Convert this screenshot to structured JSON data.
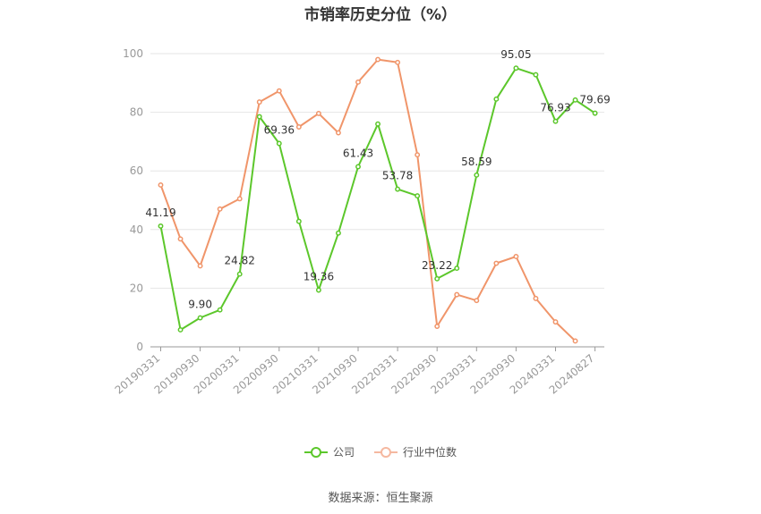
{
  "chart_data": {
    "type": "line",
    "title": "市销率历史分位（%）",
    "source": "数据来源：恒生聚源",
    "ylim": [
      0,
      100
    ],
    "y_ticks": [
      0,
      20,
      40,
      60,
      80,
      100
    ],
    "grid": true,
    "legend_position": "bottom-center",
    "x_tick_labels": [
      "20190331",
      "20190930",
      "20200331",
      "20200930",
      "20210331",
      "20210930",
      "20220331",
      "20220930",
      "20230331",
      "20230930",
      "20240331",
      "20240827"
    ],
    "x": [
      "20190331",
      "20190630",
      "20190930",
      "20191231",
      "20200331",
      "20200630",
      "20200930",
      "20201231",
      "20210331",
      "20210630",
      "20210930",
      "20211231",
      "20220331",
      "20220630",
      "20220930",
      "20221231",
      "20230331",
      "20230630",
      "20230930",
      "20231231",
      "20240331",
      "20240630",
      "20240827"
    ],
    "series": [
      {
        "name": "公司",
        "color": "#5cc72b",
        "values": [
          41.19,
          5.8,
          9.9,
          12.6,
          24.82,
          78.5,
          69.36,
          42.8,
          19.36,
          38.8,
          61.43,
          76.0,
          53.78,
          51.5,
          23.22,
          26.8,
          58.59,
          84.5,
          95.05,
          92.8,
          76.93,
          84.2,
          79.69
        ],
        "labels": {
          "0": "41.19",
          "2": "9.90",
          "4": "24.82",
          "6": "69.36",
          "8": "19.36",
          "10": "61.43",
          "12": "53.78",
          "14": "23.22",
          "16": "58.59",
          "18": "95.05",
          "20": "76.93",
          "22": "79.69"
        }
      },
      {
        "name": "行业中位数",
        "color": "#f0956a",
        "values": [
          55.2,
          36.8,
          27.6,
          47.0,
          50.5,
          83.5,
          87.3,
          75.0,
          79.6,
          73.0,
          90.3,
          98.0,
          97.0,
          65.5,
          7.0,
          17.8,
          15.8,
          28.5,
          30.8,
          16.5,
          8.5,
          2.0,
          null
        ]
      }
    ]
  }
}
